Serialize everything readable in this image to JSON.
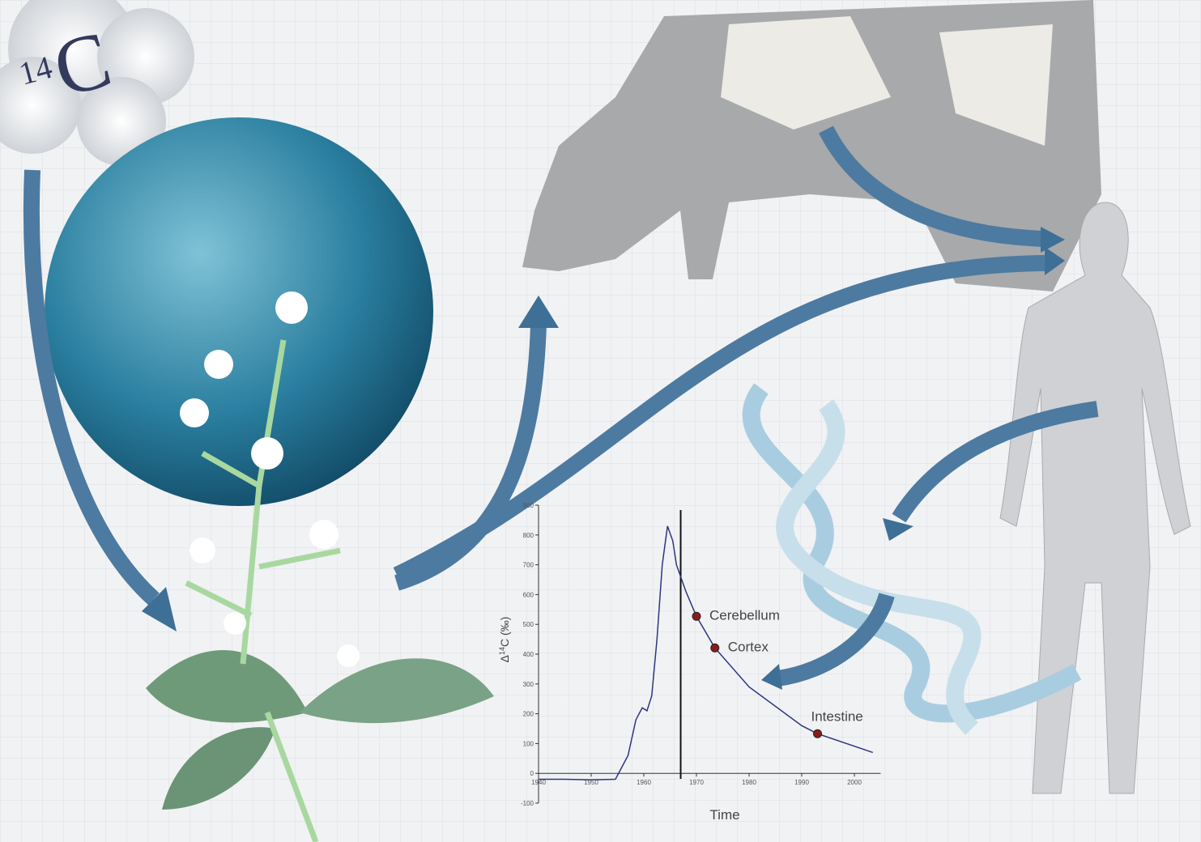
{
  "atmosphere": {
    "isotope_mass": "14",
    "element": "C"
  },
  "chart_data": {
    "type": "line",
    "ylabel_symbol": "Δ",
    "ylabel_mass": "14",
    "ylabel_element": "C",
    "ylabel_unit": "(‰)",
    "xlabel": "Time",
    "x": [
      1940,
      1945,
      1950,
      1954.6,
      1957,
      1958.5,
      1959.7,
      1960.6,
      1961.5,
      1962.5,
      1963.5,
      1964.5,
      1965.5,
      1966.2,
      1968,
      1970,
      1973.5,
      1980,
      1990,
      1993,
      2003.5
    ],
    "values": [
      -20,
      -20,
      -22,
      -20,
      60,
      180,
      220,
      210,
      260,
      450,
      700,
      830,
      780,
      700,
      610,
      527,
      421,
      290,
      160,
      133,
      70
    ],
    "color": "#2e3580",
    "vline": 1967,
    "points": [
      {
        "name": "Cerebellum",
        "x": 1970,
        "y": 527
      },
      {
        "name": "Cortex",
        "x": 1973.5,
        "y": 421
      },
      {
        "name": "Intestine",
        "x": 1993,
        "y": 133
      }
    ],
    "point_color": "#8b1a1a",
    "xlim": [
      1940,
      2005
    ],
    "ylim": [
      -100,
      900
    ],
    "xticks": [
      1940,
      1950,
      1960,
      1970,
      1980,
      1990,
      2000
    ],
    "yticks": [
      -100,
      0,
      100,
      200,
      300,
      400,
      500,
      600,
      700,
      800,
      900
    ]
  }
}
